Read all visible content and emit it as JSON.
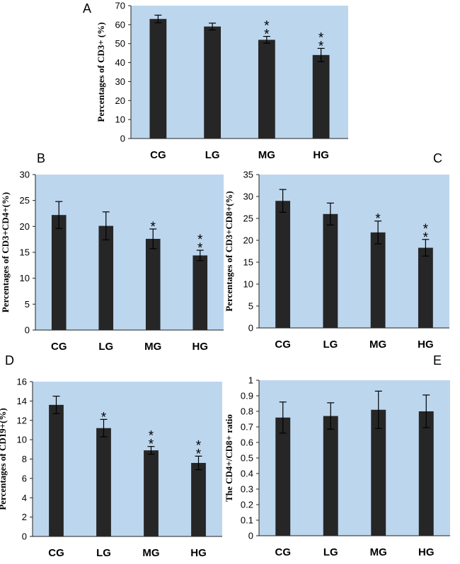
{
  "chart_data": [
    {
      "type": "bar",
      "panel": "A",
      "categories": [
        "CG",
        "LG",
        "MG",
        "HG"
      ],
      "values": [
        63,
        59,
        52,
        44
      ],
      "errors": [
        2,
        1.8,
        1.8,
        3.5
      ],
      "significance": [
        "",
        "",
        "**",
        "**"
      ],
      "ylabel": "Percentages of CD3+ (%)",
      "ylim": [
        0,
        70
      ],
      "yticks": [
        "0",
        "10",
        "20",
        "30",
        "40",
        "50",
        "60",
        "70"
      ],
      "colors": {
        "background": "#bcd6ee",
        "bar": "#262626"
      }
    },
    {
      "type": "bar",
      "panel": "B",
      "categories": [
        "CG",
        "LG",
        "MG",
        "HG"
      ],
      "values": [
        22.2,
        20.1,
        17.6,
        14.4
      ],
      "errors": [
        2.6,
        2.7,
        1.9,
        1.0
      ],
      "significance": [
        "",
        "",
        "*",
        "**"
      ],
      "ylabel": "Percentages of CD3+CD4+(%)",
      "ylim": [
        0,
        30
      ],
      "yticks": [
        "0",
        "5",
        "10",
        "15",
        "20",
        "25",
        "30"
      ],
      "colors": {
        "background": "#bcd6ee",
        "bar": "#262626"
      }
    },
    {
      "type": "bar",
      "panel": "C",
      "categories": [
        "CG",
        "LG",
        "MG",
        "HG"
      ],
      "values": [
        29,
        26,
        21.8,
        18.3
      ],
      "errors": [
        2.6,
        2.5,
        2.6,
        1.9
      ],
      "significance": [
        "",
        "",
        "*",
        "**"
      ],
      "ylabel": "Percentages of CD3+CD8+(%)",
      "ylim": [
        0,
        35
      ],
      "yticks": [
        "0",
        "5",
        "10",
        "15",
        "20",
        "25",
        "30",
        "35"
      ],
      "colors": {
        "background": "#bcd6ee",
        "bar": "#262626"
      }
    },
    {
      "type": "bar",
      "panel": "D",
      "categories": [
        "CG",
        "LG",
        "MG",
        "HG"
      ],
      "values": [
        13.6,
        11.2,
        8.9,
        7.6
      ],
      "errors": [
        0.9,
        0.9,
        0.4,
        0.7
      ],
      "significance": [
        "",
        "*",
        "**",
        "**"
      ],
      "ylabel": "Percentages of CD19+(%)",
      "ylim": [
        0,
        16
      ],
      "yticks": [
        "0",
        "2",
        "4",
        "6",
        "8",
        "10",
        "12",
        "14",
        "16"
      ],
      "colors": {
        "background": "#bcd6ee",
        "bar": "#262626"
      }
    },
    {
      "type": "bar",
      "panel": "E",
      "categories": [
        "CG",
        "LG",
        "MG",
        "HG"
      ],
      "values": [
        0.76,
        0.77,
        0.81,
        0.8
      ],
      "errors": [
        0.1,
        0.085,
        0.12,
        0.105
      ],
      "significance": [
        "",
        "",
        "",
        ""
      ],
      "ylabel": "The CD4+/CD8+ ratio",
      "ylim": [
        0,
        1
      ],
      "yticks": [
        "0",
        "0.1",
        "0.2",
        "0.3",
        "0.4",
        "0.5",
        "0.6",
        "0.7",
        "0.8",
        "0.9",
        "1"
      ],
      "colors": {
        "background": "#bcd6ee",
        "bar": "#262626"
      }
    }
  ]
}
